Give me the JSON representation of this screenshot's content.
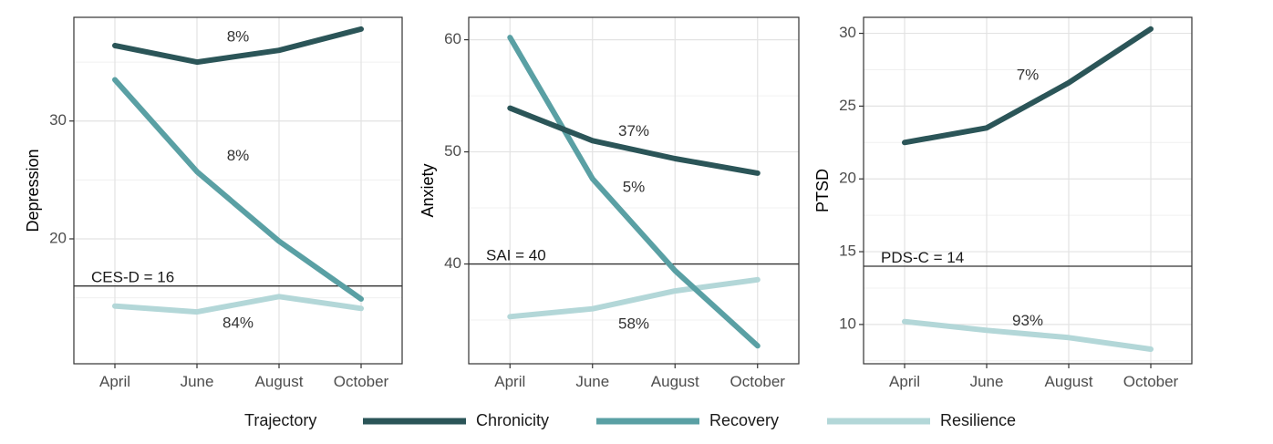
{
  "chart_data": [
    {
      "type": "line",
      "ylabel": "Depression",
      "xlabel": "",
      "categories": [
        "April",
        "June",
        "August",
        "October"
      ],
      "yticks": [
        20,
        30
      ],
      "ylim": [
        9.4,
        38.8
      ],
      "grid": true,
      "reference": {
        "label": "CES-D = 16",
        "value": 16
      },
      "series": [
        {
          "name": "Chronicity",
          "values": [
            36.4,
            35.0,
            36.0,
            37.8
          ],
          "label": "8%",
          "label_at": [
            1.5,
            37.1
          ]
        },
        {
          "name": "Recovery",
          "values": [
            33.5,
            25.7,
            19.8,
            14.9
          ],
          "label": "8%",
          "label_at": [
            1.5,
            27.0
          ]
        },
        {
          "name": "Resilience",
          "values": [
            14.3,
            13.8,
            15.1,
            14.1
          ],
          "label": "84%",
          "label_at": [
            1.5,
            12.8
          ]
        }
      ]
    },
    {
      "type": "line",
      "ylabel": "Anxiety",
      "xlabel": "",
      "categories": [
        "April",
        "June",
        "August",
        "October"
      ],
      "yticks": [
        40,
        50,
        60
      ],
      "ylim": [
        31.1,
        62.0
      ],
      "grid": true,
      "reference": {
        "label": "SAI = 40",
        "value": 40
      },
      "series": [
        {
          "name": "Chronicity",
          "values": [
            53.9,
            51.0,
            49.4,
            48.1
          ],
          "label": "37%",
          "label_at": [
            1.5,
            51.8
          ]
        },
        {
          "name": "Recovery",
          "values": [
            60.2,
            47.6,
            39.4,
            32.7
          ],
          "label": "5%",
          "label_at": [
            1.5,
            46.8
          ]
        },
        {
          "name": "Resilience",
          "values": [
            35.3,
            36.0,
            37.6,
            38.6
          ],
          "label": "58%",
          "label_at": [
            1.5,
            34.6
          ]
        }
      ]
    },
    {
      "type": "line",
      "ylabel": "PTSD",
      "xlabel": "",
      "categories": [
        "April",
        "June",
        "August",
        "October"
      ],
      "yticks": [
        10,
        15,
        20,
        25,
        30
      ],
      "ylim": [
        7.3,
        31.1
      ],
      "grid": true,
      "reference": {
        "label": "PDS-C = 14",
        "value": 14
      },
      "series": [
        {
          "name": "Chronicity",
          "values": [
            22.5,
            23.5,
            26.6,
            30.3
          ],
          "label": "7%",
          "label_at": [
            1.5,
            27.1
          ]
        },
        {
          "name": "Resilience",
          "values": [
            10.2,
            9.6,
            9.1,
            8.3
          ],
          "label": "93%",
          "label_at": [
            1.5,
            10.2
          ]
        }
      ]
    }
  ],
  "legend": {
    "title": "Trajectory",
    "position": "bottom",
    "items": [
      {
        "name": "Chronicity",
        "color": "#2b5558"
      },
      {
        "name": "Recovery",
        "color": "#5aa0a4"
      },
      {
        "name": "Resilience",
        "color": "#b3d7d8"
      }
    ]
  },
  "colors": {
    "Chronicity": "#2b5558",
    "Recovery": "#5aa0a4",
    "Resilience": "#b3d7d8"
  }
}
